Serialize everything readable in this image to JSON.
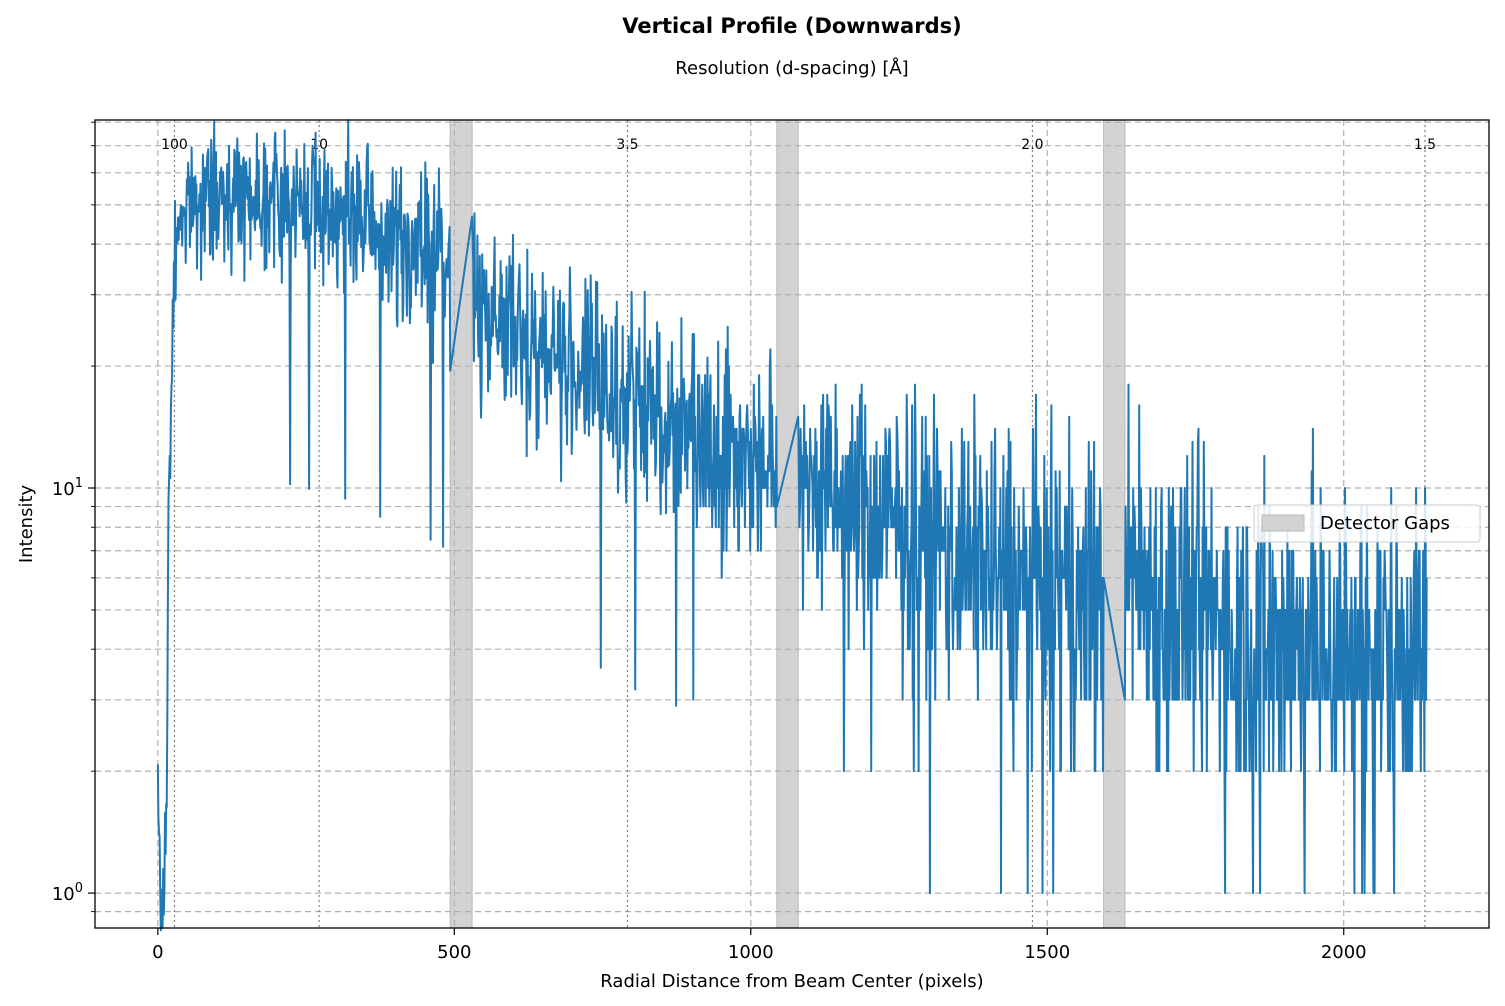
{
  "chart_data": {
    "type": "line",
    "title": "Vertical Profile (Downwards)",
    "secondary_xlabel": "Resolution (d-spacing) [Å]",
    "xlabel": "Radial Distance from Beam Center (pixels)",
    "ylabel": "Intensity",
    "xlim": [
      -106,
      2245
    ],
    "ylim": [
      0.82,
      81
    ],
    "yscale": "log",
    "x_ticks": [
      0,
      500,
      1000,
      1500,
      2000
    ],
    "y_ticks": [
      {
        "value": 1,
        "base": "10",
        "exp": "0"
      },
      {
        "value": 10,
        "base": "10",
        "exp": "1"
      }
    ],
    "resolution_marks": [
      {
        "x": 28,
        "label": "100"
      },
      {
        "x": 272,
        "label": "10"
      },
      {
        "x": 792,
        "label": "3.5"
      },
      {
        "x": 1475,
        "label": "2.0"
      },
      {
        "x": 2137,
        "label": "1.5"
      }
    ],
    "detector_gaps": [
      [
        493,
        530
      ],
      [
        1044,
        1080
      ],
      [
        1595,
        1631
      ]
    ],
    "legend": {
      "label": "Detector Gaps",
      "position": "center-right"
    },
    "grid": true,
    "line_color": "#1f77b4",
    "gap_color": "#d3d3d3",
    "series": [
      {
        "points": [
          [
            0,
            2
          ],
          [
            5,
            0.8
          ],
          [
            10,
            1
          ],
          [
            15,
            2
          ],
          [
            18,
            8
          ],
          [
            22,
            15
          ],
          [
            26,
            30
          ],
          [
            30,
            40
          ],
          [
            35,
            45
          ],
          [
            40,
            48
          ],
          [
            50,
            50
          ],
          [
            100,
            52
          ],
          [
            150,
            54
          ],
          [
            200,
            52
          ],
          [
            250,
            50
          ],
          [
            300,
            48
          ],
          [
            350,
            45
          ],
          [
            400,
            40
          ],
          [
            450,
            38
          ],
          [
            493,
            35
          ],
          [
            530,
            30
          ],
          [
            600,
            24
          ],
          [
            700,
            20
          ],
          [
            800,
            16
          ],
          [
            900,
            14
          ],
          [
            1000,
            12
          ],
          [
            1044,
            11
          ],
          [
            1080,
            13
          ],
          [
            1100,
            10
          ],
          [
            1200,
            8.5
          ],
          [
            1300,
            7.5
          ],
          [
            1400,
            6.5
          ],
          [
            1500,
            5.5
          ],
          [
            1595,
            5
          ],
          [
            1631,
            7
          ],
          [
            1700,
            5
          ],
          [
            1800,
            4.5
          ],
          [
            1900,
            4.2
          ],
          [
            2000,
            4
          ],
          [
            2100,
            4
          ],
          [
            2140,
            4
          ]
        ],
        "spread": [
          [
            0,
            0.0
          ],
          [
            30,
            0.3
          ],
          [
            500,
            0.45
          ],
          [
            1000,
            0.55
          ],
          [
            1300,
            0.7
          ],
          [
            1600,
            0.85
          ],
          [
            2140,
            0.9
          ]
        ]
      }
    ]
  }
}
